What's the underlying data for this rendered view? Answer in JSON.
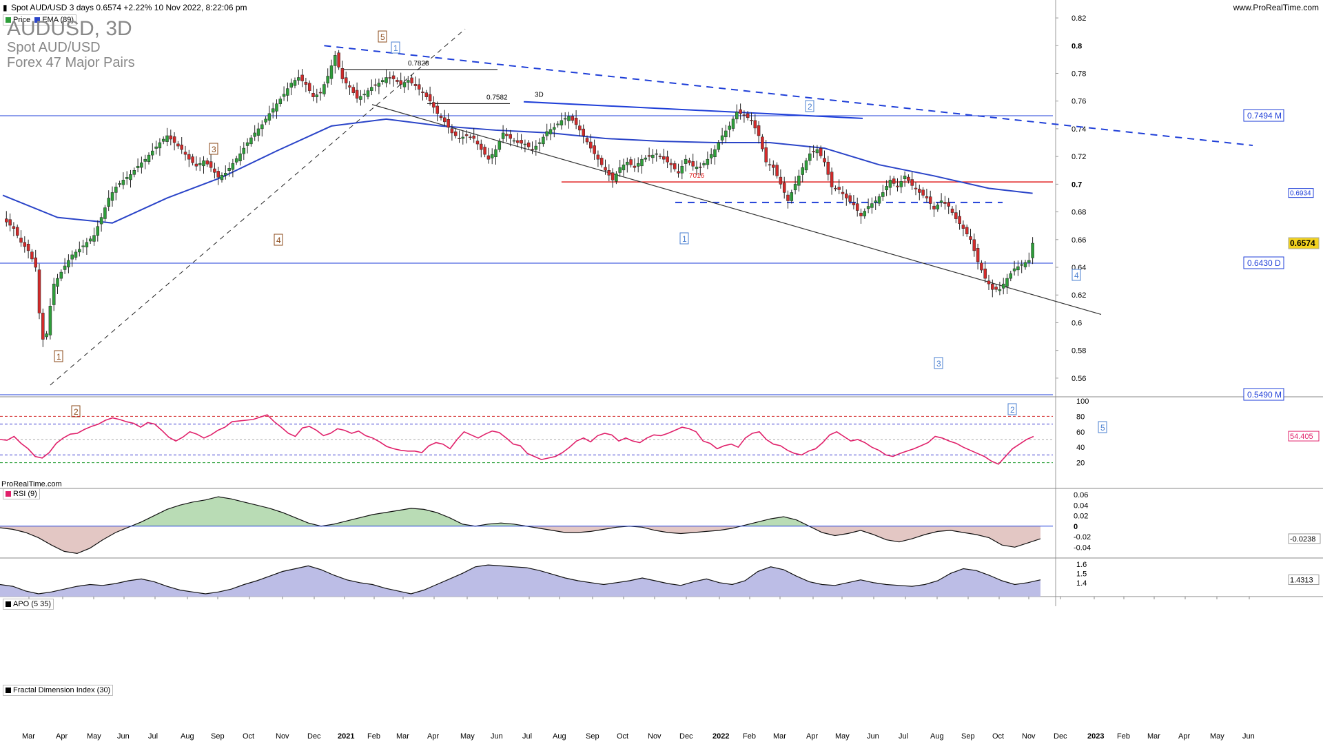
{
  "header": {
    "instrument_line": "Spot AUD/USD 3 days 0.6574 +2.22% 10 Nov 2022, 8:22:06 pm",
    "website": "www.ProRealTime.com"
  },
  "title": {
    "symbol": "AUDUSD, 3D",
    "name": "Spot AUD/USD",
    "group": "Forex 47 Major Pairs"
  },
  "watermark": "ProRealTime.com",
  "colors": {
    "up_candle": "#2e9e3a",
    "down_candle": "#d22a2a",
    "ema": "#2a44c8",
    "trend_blue": "#1f3fd8",
    "support_red": "#e02020",
    "rsi": "#e0206a",
    "price_badge": "#f2d21e"
  },
  "legends": {
    "price_label": "Price",
    "ema_label": "EMA (89)",
    "rsi_label": "RSI (9)",
    "apo_label": "APO (5 35)",
    "fdi_label": "Fractal Dimension Index (30)"
  },
  "levels": {
    "res_0_7494": "0.7494 M",
    "sup_0_6430": "0.6430 D",
    "low_0_5490": "0.5490 M",
    "ema_value": "0.6934",
    "last_price": "0.6574",
    "rsi_value": "54.405",
    "apo_value": "-0.0238",
    "fdi_value": "1.4313"
  },
  "annotations": {
    "h_0_7828": "0.7828",
    "h_0_7582": "0.7582",
    "h_3d": "3D",
    "h_7016": "7016",
    "wave_labels_brown": [
      "1",
      "2",
      "3",
      "4",
      "5"
    ],
    "wave_labels_blue": [
      "1",
      "2",
      "1",
      "3",
      "2",
      "4",
      "5"
    ]
  },
  "chart_data": [
    {
      "type": "candlestick",
      "title": "AUDUSD, 3D",
      "x_ticks": [
        "Mar",
        "Apr",
        "May",
        "Jun",
        "Jul",
        "Aug",
        "Sep",
        "Oct",
        "Nov",
        "Dec",
        "2021",
        "Feb",
        "Mar",
        "Apr",
        "May",
        "Jun",
        "Jul",
        "Aug",
        "Sep",
        "Oct",
        "Nov",
        "Dec",
        "2022",
        "Feb",
        "Mar",
        "Apr",
        "May",
        "Jun",
        "Jul",
        "Aug",
        "Sep",
        "Oct",
        "Nov",
        "Dec",
        "2023",
        "Feb",
        "Mar",
        "Apr",
        "May",
        "Jun"
      ],
      "y_ticks": [
        "0.82",
        "0.8",
        "0.78",
        "0.76",
        "0.74",
        "0.72",
        "0.7",
        "0.68",
        "0.66",
        "0.64",
        "0.62",
        "0.6",
        "0.58",
        "0.56"
      ],
      "ylim": [
        0.55,
        0.825
      ],
      "series": [
        {
          "name": "Price",
          "type": "candles"
        },
        {
          "name": "EMA (89)",
          "type": "line"
        }
      ],
      "close_path": [
        [
          0,
          0.675
        ],
        [
          3,
          0.668
        ],
        [
          5,
          0.658
        ],
        [
          7,
          0.652
        ],
        [
          9,
          0.64
        ],
        [
          10,
          0.607
        ],
        [
          11,
          0.588
        ],
        [
          12,
          0.592
        ],
        [
          13,
          0.612
        ],
        [
          14,
          0.628
        ],
        [
          15,
          0.632
        ],
        [
          17,
          0.641
        ],
        [
          19,
          0.649
        ],
        [
          21,
          0.653
        ],
        [
          23,
          0.658
        ],
        [
          25,
          0.663
        ],
        [
          27,
          0.676
        ],
        [
          29,
          0.69
        ],
        [
          31,
          0.698
        ],
        [
          33,
          0.703
        ],
        [
          35,
          0.707
        ],
        [
          37,
          0.713
        ],
        [
          39,
          0.718
        ],
        [
          41,
          0.724
        ],
        [
          43,
          0.73
        ],
        [
          45,
          0.735
        ],
        [
          47,
          0.73
        ],
        [
          49,
          0.725
        ],
        [
          51,
          0.718
        ],
        [
          53,
          0.713
        ],
        [
          55,
          0.717
        ],
        [
          57,
          0.712
        ],
        [
          59,
          0.705
        ],
        [
          61,
          0.708
        ],
        [
          63,
          0.715
        ],
        [
          65,
          0.722
        ],
        [
          67,
          0.73
        ],
        [
          69,
          0.737
        ],
        [
          71,
          0.743
        ],
        [
          73,
          0.751
        ],
        [
          75,
          0.758
        ],
        [
          77,
          0.765
        ],
        [
          79,
          0.773
        ],
        [
          81,
          0.777
        ],
        [
          83,
          0.772
        ],
        [
          85,
          0.763
        ],
        [
          87,
          0.766
        ],
        [
          89,
          0.778
        ],
        [
          91,
          0.793
        ],
        [
          93,
          0.776
        ],
        [
          95,
          0.77
        ],
        [
          97,
          0.762
        ],
        [
          99,
          0.765
        ],
        [
          101,
          0.77
        ],
        [
          103,
          0.773
        ],
        [
          105,
          0.777
        ],
        [
          107,
          0.776
        ],
        [
          109,
          0.772
        ],
        [
          111,
          0.775
        ],
        [
          113,
          0.771
        ],
        [
          115,
          0.766
        ],
        [
          117,
          0.76
        ],
        [
          119,
          0.751
        ],
        [
          121,
          0.745
        ],
        [
          123,
          0.737
        ],
        [
          125,
          0.733
        ],
        [
          127,
          0.735
        ],
        [
          129,
          0.733
        ],
        [
          131,
          0.725
        ],
        [
          133,
          0.718
        ],
        [
          135,
          0.725
        ],
        [
          137,
          0.737
        ],
        [
          139,
          0.733
        ],
        [
          141,
          0.73
        ],
        [
          143,
          0.729
        ],
        [
          145,
          0.725
        ],
        [
          147,
          0.73
        ],
        [
          149,
          0.738
        ],
        [
          151,
          0.741
        ],
        [
          153,
          0.746
        ],
        [
          155,
          0.749
        ],
        [
          157,
          0.743
        ],
        [
          159,
          0.735
        ],
        [
          161,
          0.726
        ],
        [
          163,
          0.718
        ],
        [
          165,
          0.71
        ],
        [
          167,
          0.703
        ],
        [
          169,
          0.712
        ],
        [
          171,
          0.716
        ],
        [
          173,
          0.712
        ],
        [
          175,
          0.718
        ],
        [
          177,
          0.72
        ],
        [
          179,
          0.722
        ],
        [
          181,
          0.718
        ],
        [
          183,
          0.714
        ],
        [
          185,
          0.708
        ],
        [
          187,
          0.718
        ],
        [
          189,
          0.713
        ],
        [
          191,
          0.712
        ],
        [
          193,
          0.718
        ],
        [
          195,
          0.725
        ],
        [
          197,
          0.735
        ],
        [
          199,
          0.742
        ],
        [
          201,
          0.752
        ],
        [
          203,
          0.75
        ],
        [
          205,
          0.746
        ],
        [
          207,
          0.735
        ],
        [
          209,
          0.716
        ],
        [
          211,
          0.712
        ],
        [
          213,
          0.7
        ],
        [
          215,
          0.688
        ],
        [
          217,
          0.7
        ],
        [
          219,
          0.712
        ],
        [
          221,
          0.722
        ],
        [
          223,
          0.725
        ],
        [
          225,
          0.716
        ],
        [
          227,
          0.698
        ],
        [
          229,
          0.696
        ],
        [
          231,
          0.69
        ],
        [
          233,
          0.685
        ],
        [
          235,
          0.677
        ],
        [
          237,
          0.684
        ],
        [
          239,
          0.688
        ],
        [
          241,
          0.694
        ],
        [
          243,
          0.703
        ],
        [
          245,
          0.698
        ],
        [
          247,
          0.706
        ],
        [
          249,
          0.699
        ],
        [
          251,
          0.694
        ],
        [
          253,
          0.69
        ],
        [
          255,
          0.682
        ],
        [
          257,
          0.688
        ],
        [
          259,
          0.684
        ],
        [
          261,
          0.675
        ],
        [
          263,
          0.668
        ],
        [
          265,
          0.66
        ],
        [
          267,
          0.644
        ],
        [
          269,
          0.632
        ],
        [
          271,
          0.624
        ],
        [
          273,
          0.624
        ],
        [
          275,
          0.632
        ],
        [
          277,
          0.639
        ],
        [
          279,
          0.642
        ],
        [
          281,
          0.645
        ],
        [
          282,
          0.6574
        ]
      ],
      "ema_89_path": [
        [
          0,
          0.692
        ],
        [
          15,
          0.676
        ],
        [
          30,
          0.672
        ],
        [
          45,
          0.69
        ],
        [
          60,
          0.705
        ],
        [
          75,
          0.724
        ],
        [
          90,
          0.742
        ],
        [
          105,
          0.747
        ],
        [
          120,
          0.742
        ],
        [
          135,
          0.739
        ],
        [
          150,
          0.737
        ],
        [
          165,
          0.733
        ],
        [
          180,
          0.731
        ],
        [
          195,
          0.73
        ],
        [
          210,
          0.73
        ],
        [
          225,
          0.726
        ],
        [
          240,
          0.714
        ],
        [
          255,
          0.706
        ],
        [
          270,
          0.697
        ],
        [
          282,
          0.6934
        ]
      ],
      "horizontal_levels": [
        0.7494,
        0.7016,
        0.643,
        0.549
      ],
      "last_price": 0.6574
    },
    {
      "type": "line",
      "title": "RSI (9)",
      "y_ticks": [
        "100",
        "80",
        "60",
        "40",
        "20"
      ],
      "ylim": [
        0,
        100
      ],
      "levels": [
        80,
        70,
        30,
        20
      ],
      "values": [
        50,
        49,
        54,
        45,
        38,
        28,
        26,
        33,
        45,
        52,
        57,
        58,
        63,
        67,
        70,
        75,
        78,
        76,
        73,
        71,
        66,
        72,
        70,
        62,
        53,
        48,
        53,
        60,
        57,
        52,
        56,
        62,
        66,
        73,
        74,
        75,
        76,
        79,
        82,
        73,
        66,
        58,
        54,
        65,
        67,
        62,
        55,
        58,
        64,
        62,
        58,
        61,
        55,
        52,
        47,
        41,
        38,
        36,
        35,
        35,
        33,
        42,
        46,
        44,
        38,
        50,
        60,
        56,
        52,
        57,
        61,
        59,
        52,
        44,
        42,
        32,
        28,
        24,
        26,
        28,
        33,
        40,
        48,
        52,
        47,
        55,
        58,
        56,
        48,
        52,
        48,
        46,
        52,
        56,
        55,
        58,
        62,
        66,
        64,
        60,
        48,
        45,
        38,
        42,
        44,
        40,
        52,
        58,
        60,
        50,
        44,
        42,
        36,
        32,
        30,
        35,
        38,
        46,
        56,
        60,
        54,
        48,
        50,
        46,
        40,
        36,
        30,
        28,
        32,
        35,
        38,
        42,
        46,
        54,
        52,
        48,
        45,
        40,
        36,
        32,
        28,
        22,
        18,
        28,
        38,
        44,
        50,
        54
      ]
    },
    {
      "type": "area",
      "title": "APO (5 35)",
      "y_ticks": [
        "0.06",
        "0.04",
        "0.02",
        "0",
        "-0.02",
        "-0.04"
      ],
      "ylim": [
        -0.058,
        0.068
      ],
      "values": [
        -0.003,
        -0.006,
        -0.012,
        -0.022,
        -0.036,
        -0.048,
        -0.052,
        -0.042,
        -0.026,
        -0.012,
        -0.002,
        0.008,
        0.02,
        0.032,
        0.04,
        0.046,
        0.05,
        0.056,
        0.052,
        0.046,
        0.04,
        0.034,
        0.026,
        0.016,
        0.006,
        0.0,
        0.004,
        0.01,
        0.016,
        0.022,
        0.026,
        0.03,
        0.034,
        0.032,
        0.026,
        0.016,
        0.004,
        0.0,
        0.004,
        0.006,
        0.004,
        0.0,
        -0.004,
        -0.008,
        -0.012,
        -0.012,
        -0.01,
        -0.006,
        -0.002,
        0.0,
        -0.002,
        -0.008,
        -0.012,
        -0.014,
        -0.012,
        -0.01,
        -0.008,
        -0.004,
        0.002,
        0.008,
        0.014,
        0.018,
        0.012,
        0.0,
        -0.012,
        -0.018,
        -0.014,
        -0.008,
        -0.016,
        -0.026,
        -0.03,
        -0.024,
        -0.016,
        -0.01,
        -0.008,
        -0.012,
        -0.016,
        -0.022,
        -0.036,
        -0.04,
        -0.032,
        -0.024
      ]
    },
    {
      "type": "area",
      "title": "Fractal Dimension Index (30)",
      "y_ticks": [
        "1.6",
        "1.5",
        "1.4"
      ],
      "ylim": [
        1.25,
        1.65
      ],
      "values": [
        1.38,
        1.36,
        1.31,
        1.28,
        1.3,
        1.33,
        1.36,
        1.38,
        1.37,
        1.39,
        1.42,
        1.44,
        1.41,
        1.36,
        1.32,
        1.3,
        1.28,
        1.3,
        1.33,
        1.38,
        1.42,
        1.47,
        1.52,
        1.55,
        1.58,
        1.54,
        1.48,
        1.43,
        1.4,
        1.38,
        1.34,
        1.31,
        1.28,
        1.32,
        1.38,
        1.44,
        1.5,
        1.57,
        1.59,
        1.58,
        1.57,
        1.56,
        1.53,
        1.49,
        1.45,
        1.42,
        1.4,
        1.38,
        1.4,
        1.42,
        1.45,
        1.42,
        1.39,
        1.37,
        1.41,
        1.44,
        1.4,
        1.38,
        1.42,
        1.52,
        1.57,
        1.54,
        1.47,
        1.41,
        1.38,
        1.37,
        1.4,
        1.43,
        1.4,
        1.38,
        1.37,
        1.36,
        1.38,
        1.42,
        1.5,
        1.55,
        1.53,
        1.48,
        1.42,
        1.38,
        1.4,
        1.43
      ]
    }
  ]
}
